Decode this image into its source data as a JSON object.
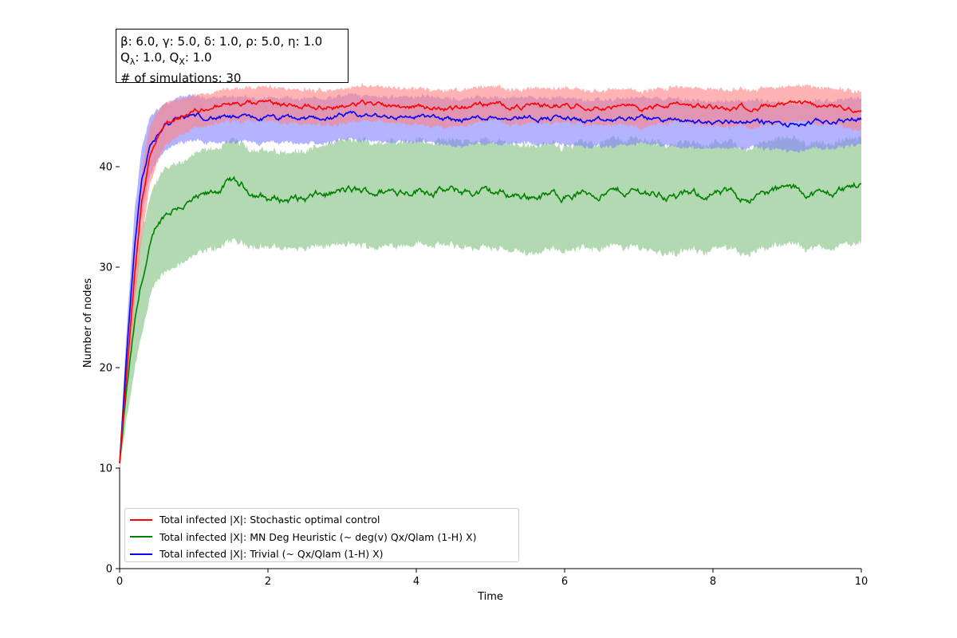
{
  "chart_data": {
    "type": "line",
    "title": "",
    "xlabel": "Time",
    "ylabel": "Number of nodes",
    "xlim": [
      0,
      10
    ],
    "ylim": [
      0,
      50
    ],
    "x_ticks": [
      0,
      2,
      4,
      6,
      8,
      10
    ],
    "y_ticks": [
      0,
      10,
      20,
      30,
      40
    ],
    "grid": false,
    "legend_position": "bottom-left",
    "annotation_lines": [
      [
        "β: 6.0, ",
        "γ: 5.0, ",
        "δ: 1.0, ",
        "ρ: 5.0, ",
        "η: 1.0"
      ],
      [
        "Q",
        "λ",
        ": 1.0, Q",
        "X",
        ": 1.0"
      ],
      [
        "# of simulations: 30"
      ]
    ],
    "x": [
      0,
      0.1,
      0.2,
      0.3,
      0.4,
      0.5,
      0.6,
      0.8,
      1.0,
      1.2,
      1.5,
      2.0,
      2.5,
      3.0,
      3.5,
      4.0,
      4.5,
      5.0,
      5.5,
      6.0,
      6.5,
      7.0,
      7.5,
      8.0,
      8.5,
      9.0,
      9.5,
      10.0
    ],
    "series": [
      {
        "name": "Total infected |X|: Stochastic optimal control",
        "color": "#ff0000",
        "band_color": "#ff8080",
        "mean": [
          10.5,
          20.0,
          29.0,
          36.5,
          41.0,
          43.0,
          44.2,
          45.0,
          45.5,
          45.9,
          46.2,
          46.2,
          46.1,
          46.1,
          46.3,
          46.0,
          45.8,
          46.3,
          46.0,
          46.2,
          46.1,
          45.8,
          46.2,
          45.9,
          46.0,
          46.1,
          46.0,
          45.7
        ],
        "lower": [
          9.8,
          18.0,
          26.0,
          33.0,
          38.0,
          40.5,
          42.0,
          43.2,
          43.8,
          44.2,
          44.5,
          44.4,
          44.3,
          44.3,
          44.6,
          44.2,
          43.9,
          44.6,
          44.2,
          44.5,
          44.3,
          43.9,
          44.4,
          44.0,
          44.1,
          44.3,
          44.2,
          43.8
        ],
        "upper": [
          11.2,
          22.0,
          32.0,
          39.5,
          44.0,
          45.6,
          46.3,
          46.8,
          47.1,
          47.4,
          47.7,
          47.8,
          47.7,
          47.8,
          48.0,
          47.8,
          47.6,
          48.0,
          47.7,
          47.9,
          47.8,
          47.5,
          47.9,
          47.7,
          47.8,
          47.9,
          47.8,
          47.6
        ]
      },
      {
        "name": "Total infected |X|: MN Deg Heuristic (~ deg(v) Qx/Qlam (1-H) X)",
        "color": "#008000",
        "band_color": "#80c080",
        "mean": [
          10.5,
          18.0,
          24.0,
          28.5,
          31.5,
          34.0,
          35.2,
          36.2,
          36.5,
          37.0,
          38.5,
          36.8,
          36.8,
          37.5,
          37.5,
          37.8,
          37.5,
          37.4,
          37.1,
          37.2,
          37.4,
          37.6,
          37.0,
          37.3,
          37.0,
          37.8,
          37.2,
          38.3
        ],
        "lower": [
          9.8,
          15.0,
          19.5,
          23.5,
          26.5,
          28.5,
          29.5,
          30.5,
          31.0,
          31.5,
          32.5,
          32.0,
          31.8,
          32.2,
          32.0,
          32.5,
          32.0,
          31.8,
          31.5,
          31.8,
          32.0,
          32.0,
          31.3,
          31.8,
          31.5,
          32.2,
          31.8,
          32.5
        ],
        "upper": [
          11.2,
          21.0,
          28.5,
          33.5,
          36.5,
          38.5,
          39.8,
          40.5,
          41.0,
          41.5,
          42.5,
          41.5,
          41.5,
          42.5,
          42.5,
          42.8,
          42.5,
          42.6,
          42.2,
          42.2,
          42.6,
          42.8,
          42.2,
          42.4,
          42.0,
          42.8,
          42.2,
          43.0
        ]
      },
      {
        "name": "Total infected |X|: Trivial (~ Qx/Qlam (1-H) X)",
        "color": "#0000ff",
        "band_color": "#8080ff",
        "mean": [
          10.5,
          22.0,
          32.0,
          39.0,
          42.0,
          43.0,
          44.0,
          44.7,
          45.0,
          45.0,
          44.8,
          44.8,
          44.7,
          45.0,
          45.0,
          45.0,
          44.6,
          45.0,
          45.0,
          44.8,
          44.4,
          44.9,
          44.6,
          44.4,
          44.6,
          44.1,
          44.4,
          44.8
        ],
        "lower": [
          9.8,
          19.5,
          28.5,
          35.5,
          39.0,
          40.5,
          41.5,
          42.3,
          42.5,
          42.5,
          42.3,
          42.3,
          42.2,
          42.5,
          42.5,
          42.5,
          42.0,
          42.4,
          42.4,
          42.2,
          41.8,
          42.3,
          42.0,
          41.8,
          42.0,
          41.5,
          41.8,
          42.2
        ],
        "upper": [
          11.2,
          24.5,
          35.5,
          42.0,
          44.8,
          45.6,
          46.2,
          46.8,
          47.0,
          47.0,
          46.8,
          46.8,
          46.7,
          47.0,
          47.0,
          47.0,
          46.7,
          47.0,
          47.0,
          46.8,
          46.5,
          46.9,
          46.7,
          46.5,
          46.7,
          46.2,
          46.5,
          46.9
        ]
      }
    ]
  }
}
